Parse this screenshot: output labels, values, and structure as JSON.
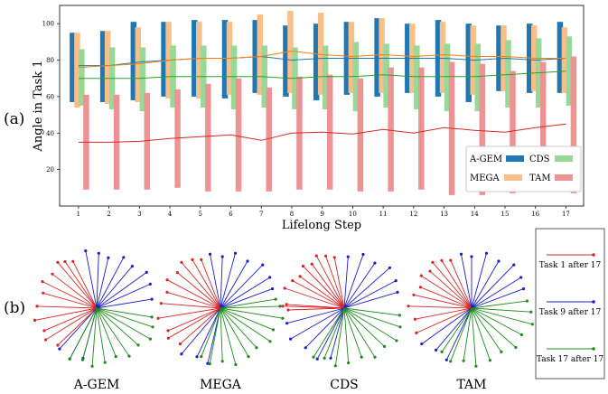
{
  "panel_labels": {
    "a": "(a)",
    "b": "(b)"
  },
  "colors": {
    "A-GEM": "#1f77b4",
    "CDS": "#98d898",
    "MEGA": "#f8c088",
    "TAM": "#ec9494",
    "task1": "#d62728",
    "task9": "#1c1cc8",
    "task17": "#1f8a1f",
    "tam_line": "#d62728",
    "cds_line": "#2ca02c",
    "mega_line": "#ff7f0e",
    "agem_line": "#1f77b4"
  },
  "chart_data": [
    {
      "type": "bar",
      "title": "",
      "xlabel": "Lifelong Step",
      "ylabel": "Angle in Task 1",
      "categories": [
        "1",
        "2",
        "3",
        "4",
        "5",
        "6",
        "7",
        "8",
        "9",
        "10",
        "11",
        "12",
        "13",
        "14",
        "15",
        "16",
        "17"
      ],
      "ylim": [
        0,
        110
      ],
      "yticks": [
        20,
        40,
        60,
        80,
        100
      ],
      "grid": false,
      "legend": "bottom-right",
      "note": "floating bars: each bar spans [low, high]; lines connect per-step means",
      "series": [
        {
          "name": "A-GEM",
          "low": [
            57,
            57,
            58,
            60,
            60,
            59,
            62,
            60,
            58,
            61,
            60,
            62,
            60,
            57,
            63,
            62,
            62
          ],
          "high": [
            95,
            96,
            101,
            101,
            102,
            102,
            102,
            99,
            100,
            101,
            103,
            100,
            102,
            100,
            99,
            100,
            101
          ],
          "mean": [
            77,
            77,
            79,
            80,
            81,
            81,
            82,
            80,
            81,
            81,
            81,
            81,
            81,
            80,
            81,
            80,
            81
          ]
        },
        {
          "name": "CDS",
          "low": [
            55,
            53,
            52,
            54,
            54,
            53,
            54,
            53,
            53,
            52,
            54,
            53,
            52,
            52,
            54,
            54,
            55
          ],
          "high": [
            86,
            87,
            87,
            88,
            88,
            88,
            88,
            87,
            88,
            90,
            89,
            88,
            89,
            89,
            91,
            92,
            93
          ],
          "mean": [
            70,
            70,
            70,
            71,
            71,
            71,
            71,
            70,
            71,
            71,
            72,
            71,
            71,
            71,
            72,
            73,
            74
          ]
        },
        {
          "name": "MEGA",
          "low": [
            54,
            56,
            57,
            59,
            59,
            61,
            61,
            62,
            61,
            62,
            62,
            62,
            62,
            61,
            63,
            63,
            62
          ],
          "high": [
            95,
            96,
            98,
            101,
            101,
            101,
            105,
            107,
            106,
            101,
            103,
            100,
            101,
            99,
            99,
            99,
            98
          ],
          "mean": [
            76,
            77,
            78,
            80,
            81,
            81,
            82,
            85,
            83,
            82,
            83,
            82,
            83,
            82,
            82,
            81,
            81
          ]
        },
        {
          "name": "TAM",
          "low": [
            9,
            9,
            9,
            10,
            8,
            8,
            8,
            9,
            9,
            8,
            8,
            9,
            6,
            6,
            7,
            8,
            7
          ],
          "high": [
            61,
            61,
            62,
            64,
            67,
            70,
            65,
            71,
            72,
            70,
            76,
            76,
            79,
            78,
            74,
            79,
            82
          ],
          "mean": [
            35,
            35,
            35.5,
            37,
            38,
            39,
            36,
            40,
            40.5,
            39.5,
            42,
            40,
            43,
            41.5,
            40.5,
            43,
            45
          ]
        }
      ]
    },
    {
      "type": "star",
      "groups": [
        "A-GEM",
        "MEGA",
        "CDS",
        "TAM"
      ],
      "legend": [
        {
          "name": "Task 1 after 17",
          "color_key": "task1"
        },
        {
          "name": "Task 9 after 17",
          "color_key": "task9"
        },
        {
          "name": "Task 17 after 17",
          "color_key": "task17"
        }
      ],
      "angles_deg": {
        "A-GEM": {
          "task1": [
            115,
            122,
            128,
            140,
            152,
            163,
            178,
            192,
            205,
            214,
            226
          ],
          "task9": [
            10,
            26,
            38,
            52,
            64,
            78,
            88,
            100,
            230,
            244,
            256
          ],
          "task17": [
            -10,
            -20,
            -32,
            -44,
            -58,
            -70,
            -82,
            -94,
            -104,
            -116
          ]
        },
        "MEGA": {
          "task1": [
            110,
            118,
            128,
            138,
            150,
            162,
            175,
            190,
            205,
            212,
            224
          ],
          "task9": [
            22,
            34,
            48,
            62,
            76,
            88,
            100,
            232,
            246,
            258
          ],
          "task17": [
            10,
            2,
            -10,
            -24,
            -36,
            -50,
            -62,
            -76,
            -88,
            -100,
            -110
          ]
        },
        "CDS": {
          "task1": [
            100,
            108,
            116,
            124,
            132,
            142,
            150,
            160,
            176,
            178,
            182
          ],
          "task9": [
            18,
            30,
            44,
            58,
            72,
            86,
            196,
            212,
            228,
            244,
            256
          ],
          "task17": [
            -8,
            -20,
            -34,
            -46,
            -60,
            -72,
            -86,
            -98,
            -110,
            -120
          ]
        },
        "TAM": {
          "task1": [
            112,
            120,
            128,
            136,
            145,
            156,
            166,
            178,
            192,
            206
          ],
          "task9": [
            22,
            34,
            48,
            62,
            76,
            90,
            100,
            218,
            232,
            246
          ],
          "task17": [
            8,
            -4,
            -16,
            -30,
            -44,
            -58,
            -72,
            -86,
            -98,
            -110,
            -122
          ]
        }
      }
    }
  ]
}
